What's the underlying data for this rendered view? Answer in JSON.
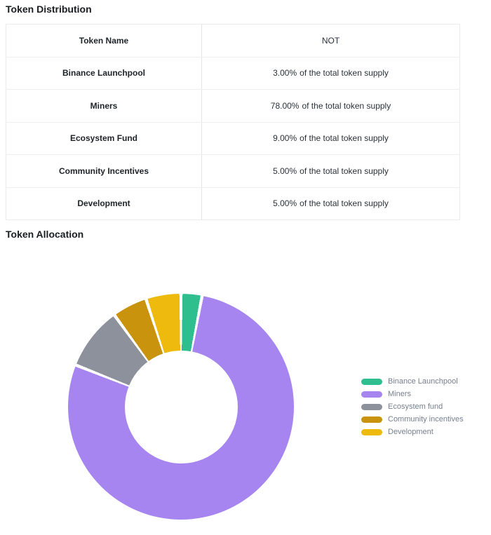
{
  "sections": {
    "distribution_title": "Token Distribution"
  },
  "table": {
    "headers": [
      "Token Name",
      "NOT"
    ],
    "value_suffix": "of the total token supply",
    "rows": [
      {
        "name": "Binance Launchpool",
        "pct": "3.00%",
        "suffix": "of the total token supply"
      },
      {
        "name": "Miners",
        "pct": "78.00%",
        "suffix": "of the total token supply"
      },
      {
        "name": "Ecosystem Fund",
        "pct": "9.00%",
        "suffix": "of the total token supply"
      },
      {
        "name": "Community Incentives",
        "pct": "5.00%",
        "suffix": "of the total token supply"
      },
      {
        "name": "Development",
        "pct": "5.00%",
        "suffix": "of the total token supply"
      }
    ]
  },
  "chart_data": {
    "type": "pie",
    "donut": true,
    "title": "Token Allocation",
    "start_angle_deg": 0,
    "direction": "clockwise",
    "inner_radius_ratio": 0.5,
    "legend_position": "right",
    "value_unit": "%",
    "segments": [
      {
        "label": "Binance Launchpool",
        "value": 3,
        "color": "#2fbf8f"
      },
      {
        "label": "Miners",
        "value": 78,
        "color": "#a685f0"
      },
      {
        "label": "Ecosystem fund",
        "value": 9,
        "color": "#8c919b"
      },
      {
        "label": "Community incentives",
        "value": 5,
        "color": "#c9930e"
      },
      {
        "label": "Development",
        "value": 5,
        "color": "#eeba0d"
      }
    ]
  }
}
